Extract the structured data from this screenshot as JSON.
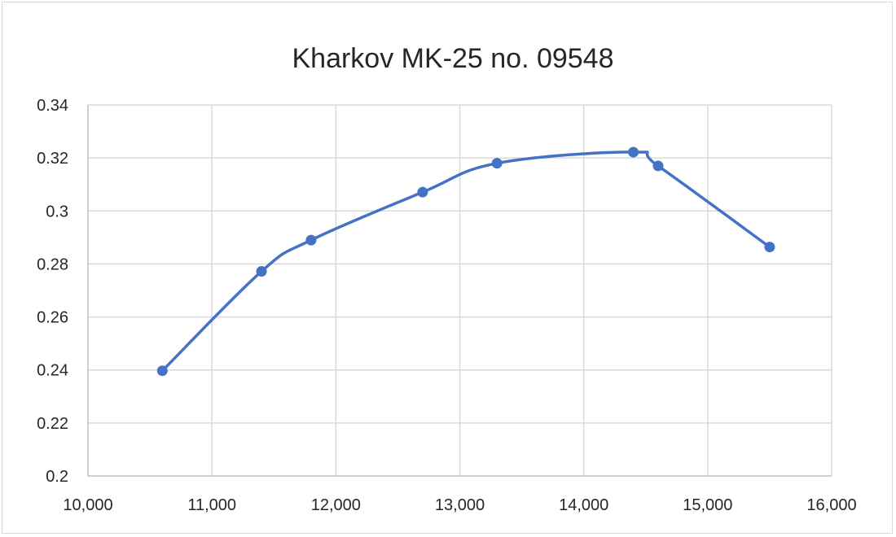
{
  "chart_data": {
    "type": "scatter",
    "title": "Kharkov MK-25 no. 09548",
    "xlabel": "",
    "ylabel": "",
    "xlim": [
      10000,
      16000
    ],
    "ylim": [
      0.2,
      0.34
    ],
    "x_ticks": [
      "10,000",
      "11,000",
      "12,000",
      "13,000",
      "14,000",
      "15,000",
      "16,000"
    ],
    "y_ticks": [
      "0.2",
      "0.22",
      "0.24",
      "0.26",
      "0.28",
      "0.3",
      "0.32",
      "0.34"
    ],
    "grid": true,
    "legend": "none",
    "smooth": true,
    "series": [
      {
        "color": "#4472c4",
        "x": [
          10600,
          11400,
          11800,
          12700,
          13300,
          14400,
          14600,
          15500
        ],
        "y": [
          0.2397,
          0.2772,
          0.289,
          0.3071,
          0.318,
          0.3222,
          0.317,
          0.2864
        ]
      }
    ]
  }
}
